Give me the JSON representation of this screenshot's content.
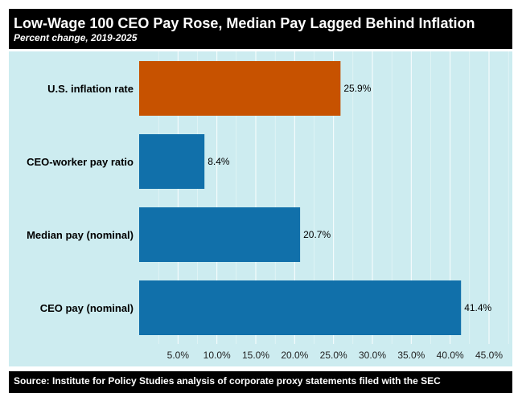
{
  "header": {
    "title": "Low-Wage 100 CEO Pay Rose, Median Pay Lagged Behind Inflation",
    "subtitle": "Percent change, 2019-2025"
  },
  "footer": {
    "source": "Source: Institute for Policy Studies analysis of corporate proxy statements filed with the SEC"
  },
  "chart_data": {
    "type": "bar",
    "orientation": "horizontal",
    "title": "Low-Wage 100 CEO Pay Rose, Median Pay Lagged Behind Inflation",
    "subtitle": "Percent change, 2019-2025",
    "xlabel": "",
    "ylabel": "",
    "categories": [
      "U.S. inflation rate",
      "CEO-worker pay ratio",
      "Median pay (nominal)",
      "CEO pay (nominal)"
    ],
    "values": [
      25.9,
      8.4,
      20.7,
      41.4
    ],
    "data_labels": [
      "25.9%",
      "8.4%",
      "20.7%",
      "41.4%"
    ],
    "bar_colors": [
      "#c75200",
      "#1170aa",
      "#1170aa",
      "#1170aa"
    ],
    "xlim": [
      0,
      48
    ],
    "xticks": [
      5,
      10,
      15,
      20,
      25,
      30,
      35,
      40,
      45
    ],
    "xtick_labels": [
      "5.0%",
      "10.0%",
      "15.0%",
      "20.0%",
      "25.0%",
      "30.0%",
      "35.0%",
      "40.0%",
      "45.0%"
    ],
    "grid": true,
    "background": "#cdecf0",
    "grid_color": "#ffffff"
  }
}
